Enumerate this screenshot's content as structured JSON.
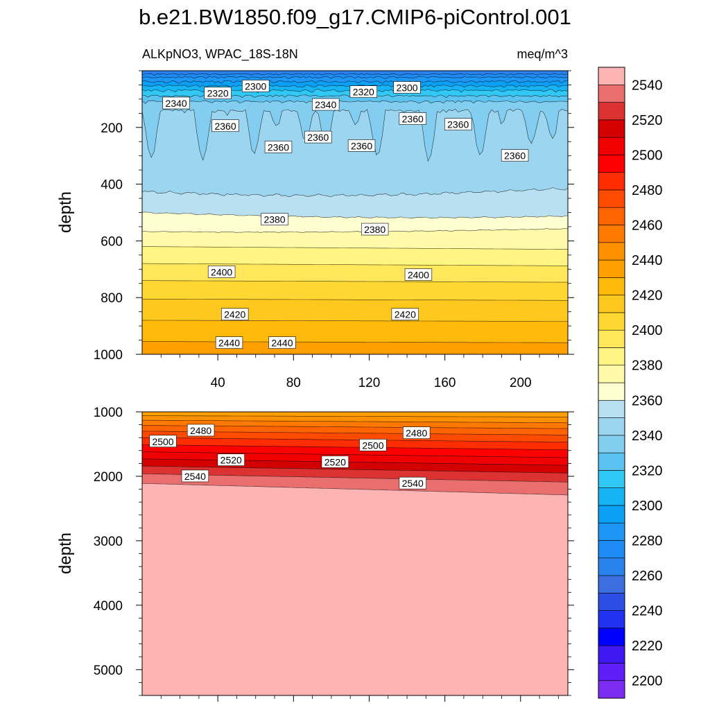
{
  "title": "b.e21.BW1850.f09_g17.CMIP6-piControl.001",
  "subtitle_left": "ALKpNO3, WPAC_18S-18N",
  "subtitle_right": "meq/m^3",
  "chart_data": [
    {
      "type": "heatmap",
      "panel": "upper",
      "ylabel": "depth",
      "xlabel": "",
      "xlim": [
        0,
        225
      ],
      "ylim": [
        1000,
        0
      ],
      "x_ticks": [
        40,
        80,
        120,
        160,
        200
      ],
      "x_tick_labels": [
        "40",
        "80",
        "120",
        "160",
        "200"
      ],
      "y_ticks": [
        200,
        400,
        600,
        800,
        1000
      ],
      "y_tick_labels": [
        "200",
        "400",
        "600",
        "800",
        "1000"
      ],
      "contour_labels": [
        {
          "text": "2320",
          "x": 40,
          "depth": 80
        },
        {
          "text": "2300",
          "x": 60,
          "depth": 55
        },
        {
          "text": "2320",
          "x": 117,
          "depth": 75
        },
        {
          "text": "2300",
          "x": 140,
          "depth": 60
        },
        {
          "text": "2340",
          "x": 18,
          "depth": 115
        },
        {
          "text": "2340",
          "x": 97,
          "depth": 120
        },
        {
          "text": "2360",
          "x": 44,
          "depth": 195
        },
        {
          "text": "2360",
          "x": 72,
          "depth": 270
        },
        {
          "text": "2360",
          "x": 93,
          "depth": 235
        },
        {
          "text": "2360",
          "x": 116,
          "depth": 265
        },
        {
          "text": "2360",
          "x": 143,
          "depth": 170
        },
        {
          "text": "2360",
          "x": 167,
          "depth": 190
        },
        {
          "text": "2360",
          "x": 197,
          "depth": 300
        },
        {
          "text": "2380",
          "x": 70,
          "depth": 525
        },
        {
          "text": "2380",
          "x": 123,
          "depth": 560
        },
        {
          "text": "2400",
          "x": 42,
          "depth": 710
        },
        {
          "text": "2400",
          "x": 146,
          "depth": 720
        },
        {
          "text": "2420",
          "x": 49,
          "depth": 860
        },
        {
          "text": "2420",
          "x": 139,
          "depth": 860
        },
        {
          "text": "2440",
          "x": 46,
          "depth": 960
        },
        {
          "text": "2440",
          "x": 74,
          "depth": 960
        }
      ]
    },
    {
      "type": "heatmap",
      "panel": "lower",
      "ylabel": "depth",
      "xlabel": "",
      "xlim": [
        0,
        225
      ],
      "ylim": [
        5400,
        1000
      ],
      "y_ticks": [
        1000,
        2000,
        3000,
        4000,
        5000
      ],
      "y_tick_labels": [
        "1000",
        "2000",
        "3000",
        "4000",
        "5000"
      ],
      "contour_labels": [
        {
          "text": "2480",
          "x": 31,
          "depth": 1290
        },
        {
          "text": "2500",
          "x": 11,
          "depth": 1460
        },
        {
          "text": "2520",
          "x": 47,
          "depth": 1750
        },
        {
          "text": "2520",
          "x": 102,
          "depth": 1780
        },
        {
          "text": "2500",
          "x": 122,
          "depth": 1520
        },
        {
          "text": "2480",
          "x": 145,
          "depth": 1330
        },
        {
          "text": "2540",
          "x": 28,
          "depth": 2000
        },
        {
          "text": "2540",
          "x": 143,
          "depth": 2110
        }
      ]
    }
  ],
  "colorbar": {
    "units": "meq/m^3",
    "levels": [
      2200,
      2210,
      2220,
      2230,
      2240,
      2250,
      2260,
      2270,
      2280,
      2290,
      2300,
      2310,
      2320,
      2330,
      2340,
      2350,
      2360,
      2370,
      2380,
      2390,
      2400,
      2410,
      2420,
      2430,
      2440,
      2450,
      2460,
      2470,
      2480,
      2490,
      2500,
      2510,
      2520,
      2530,
      2540,
      2550
    ],
    "tick_labels": [
      "2200",
      "2220",
      "2240",
      "2260",
      "2280",
      "2300",
      "2320",
      "2340",
      "2360",
      "2380",
      "2400",
      "2420",
      "2440",
      "2460",
      "2480",
      "2500",
      "2520",
      "2540"
    ],
    "colors": [
      "#7b2cf0",
      "#5f1ef5",
      "#3d18f0",
      "#0000ff",
      "#1e32f0",
      "#2a4ee6",
      "#3c6ee0",
      "#2a82ee",
      "#1e8cf5",
      "#1e96f5",
      "#0aa0f5",
      "#14b4f5",
      "#32c8f5",
      "#5ac3f0",
      "#82cdf0",
      "#9bd5f0",
      "#b9e0f0",
      "#ffffd2",
      "#fffaaa",
      "#fff582",
      "#ffe65a",
      "#ffd732",
      "#ffc81e",
      "#ffb90a",
      "#ffa000",
      "#ff9100",
      "#ff7800",
      "#ff6400",
      "#ff4b00",
      "#ff2d00",
      "#ff0000",
      "#f00000",
      "#d20000",
      "#dc3232",
      "#eb6e6e",
      "#ffb4b4"
    ]
  }
}
